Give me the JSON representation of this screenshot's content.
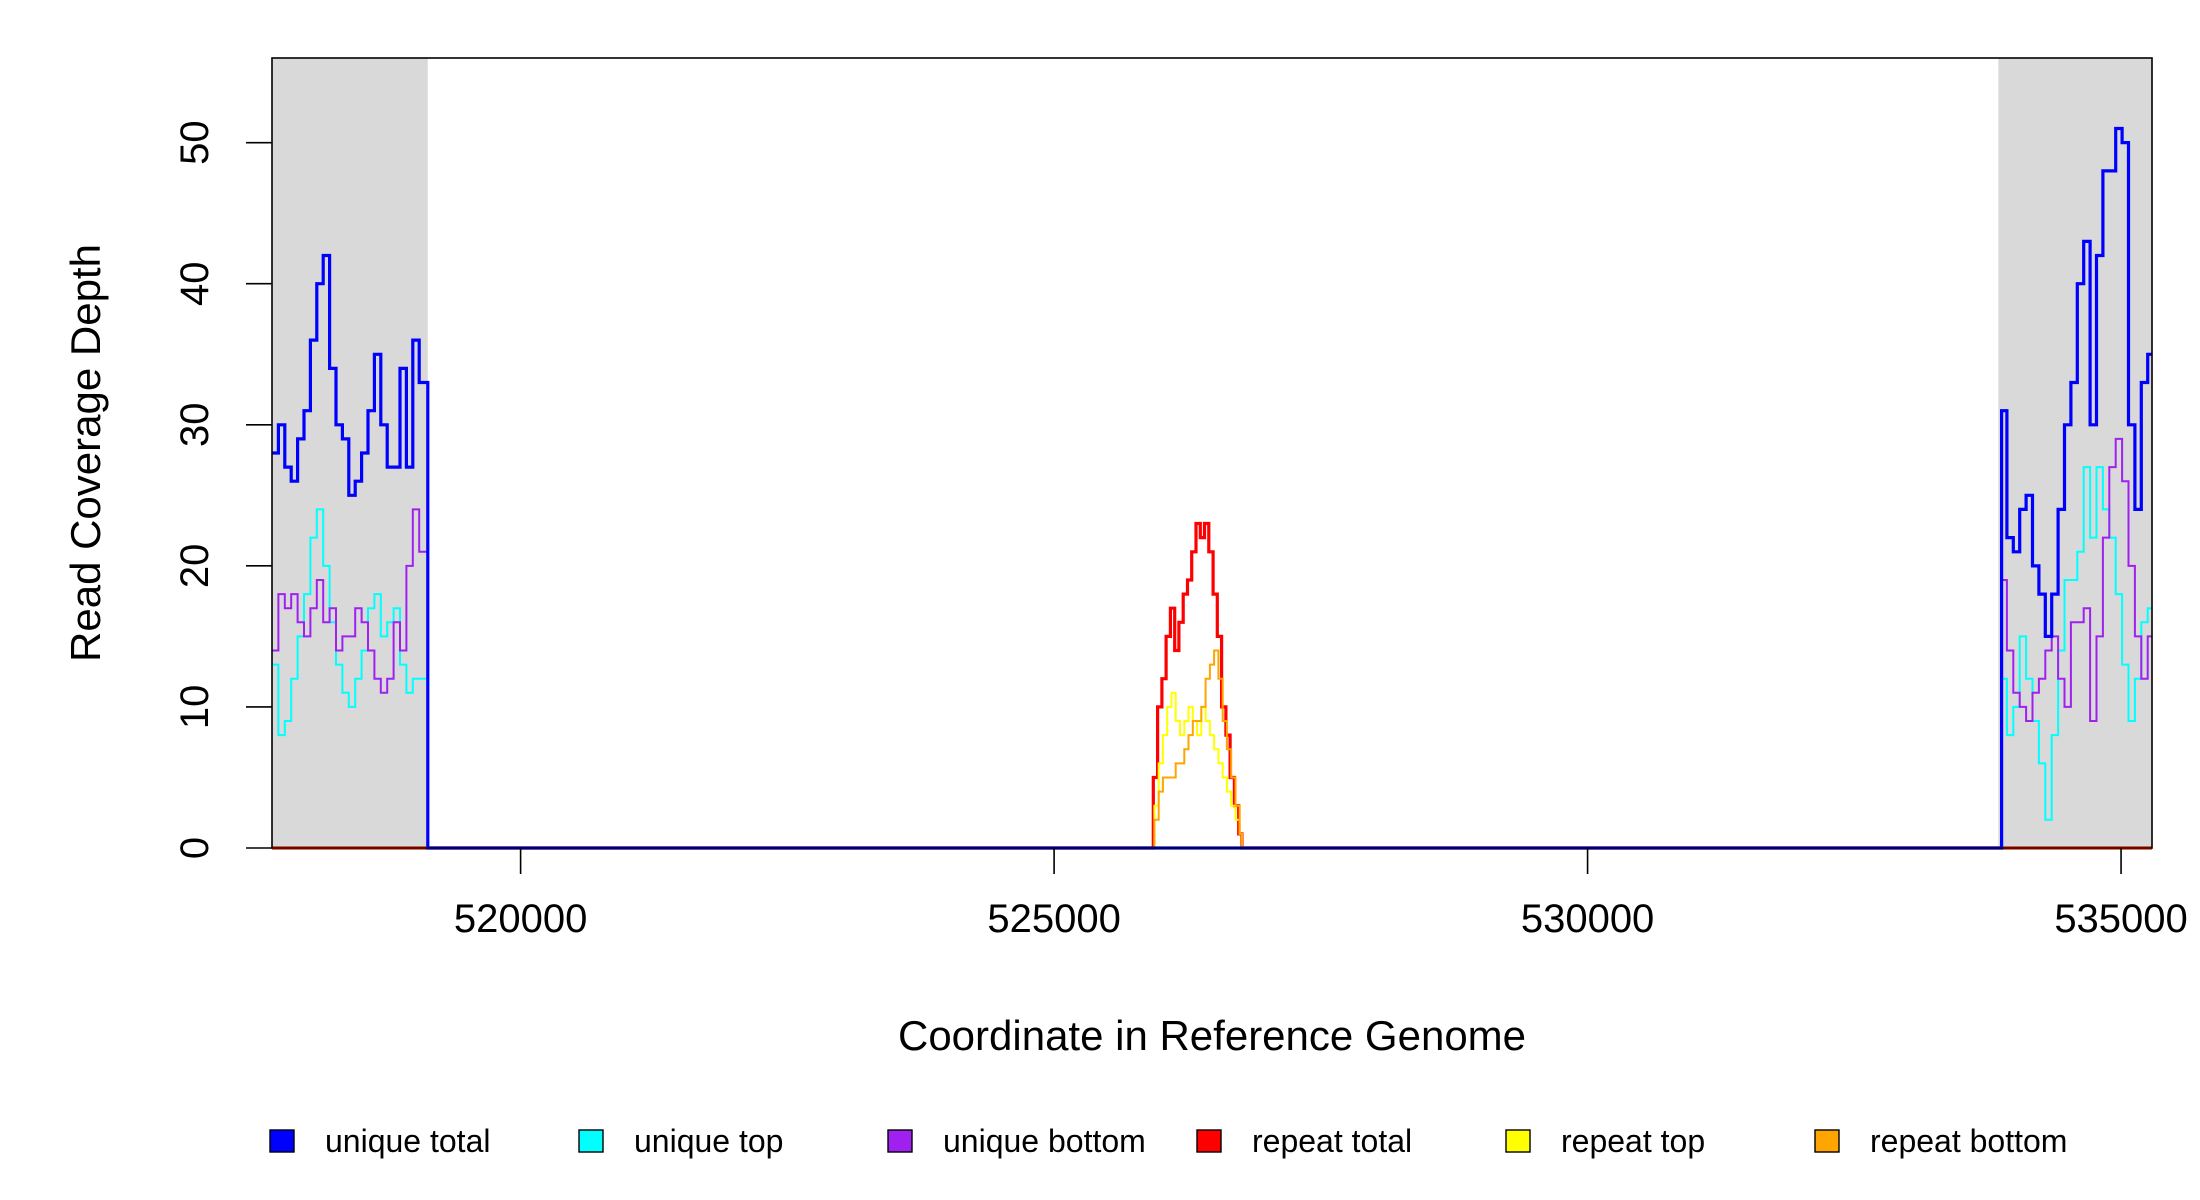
{
  "chart_data": {
    "type": "line",
    "title": "",
    "xlabel": "Coordinate in Reference Genome",
    "ylabel": "Read Coverage Depth",
    "xlim": [
      517670,
      535290
    ],
    "ylim": [
      0,
      56
    ],
    "x_ticks": [
      520000,
      525000,
      530000,
      535000
    ],
    "x_tick_labels": [
      "520000",
      "525000",
      "530000",
      "535000"
    ],
    "y_ticks": [
      0,
      10,
      20,
      30,
      40,
      50
    ],
    "y_tick_labels": [
      "0",
      "10",
      "20",
      "30",
      "40",
      "50"
    ],
    "grid": false,
    "shaded_regions": [
      {
        "x0": 517670,
        "x1": 519130,
        "color": "#d9d9d9"
      },
      {
        "x0": 533850,
        "x1": 535290,
        "color": "#d9d9d9"
      }
    ],
    "legend": {
      "placement": "bottom",
      "entries": [
        {
          "label": "unique total",
          "color": "#0000ff"
        },
        {
          "label": "unique top",
          "color": "#00ffff"
        },
        {
          "label": "unique bottom",
          "color": "#a020f0"
        },
        {
          "label": "repeat total",
          "color": "#ff0000"
        },
        {
          "label": "repeat top",
          "color": "#ffff00"
        },
        {
          "label": "repeat bottom",
          "color": "#ffa500"
        }
      ]
    },
    "series": [
      {
        "name": "unique total",
        "color": "#0000ff",
        "width": 3.2,
        "x": [
          517670,
          517730,
          517790,
          517850,
          517910,
          517970,
          518030,
          518090,
          518150,
          518210,
          518270,
          518330,
          518390,
          518450,
          518510,
          518570,
          518630,
          518690,
          518750,
          518810,
          518870,
          518930,
          518990,
          519050,
          519100,
          519130,
          533850,
          533880,
          533930,
          533990,
          534050,
          534110,
          534170,
          534230,
          534290,
          534350,
          534410,
          534470,
          534530,
          534590,
          534650,
          534710,
          534770,
          534830,
          534890,
          534950,
          535010,
          535070,
          535130,
          535190,
          535250,
          535290
        ],
        "y": [
          28,
          30,
          27,
          26,
          29,
          31,
          36,
          40,
          42,
          34,
          30,
          29,
          25,
          26,
          28,
          31,
          35,
          30,
          27,
          27,
          34,
          27,
          36,
          33,
          33,
          0,
          0,
          31,
          22,
          21,
          24,
          25,
          20,
          18,
          15,
          18,
          24,
          30,
          33,
          40,
          43,
          30,
          42,
          48,
          48,
          51,
          50,
          30,
          24,
          33,
          35,
          35
        ]
      },
      {
        "name": "unique top",
        "color": "#00ffff",
        "width": 2,
        "x": [
          517670,
          517730,
          517790,
          517850,
          517910,
          517970,
          518030,
          518090,
          518150,
          518210,
          518270,
          518330,
          518390,
          518450,
          518510,
          518570,
          518630,
          518690,
          518750,
          518810,
          518870,
          518930,
          518990,
          519050,
          519100,
          519130,
          533850,
          533880,
          533930,
          533990,
          534050,
          534110,
          534170,
          534230,
          534290,
          534350,
          534410,
          534470,
          534530,
          534590,
          534650,
          534710,
          534770,
          534830,
          534890,
          534950,
          535010,
          535070,
          535130,
          535190,
          535250,
          535290
        ],
        "y": [
          13,
          8,
          9,
          12,
          15,
          18,
          22,
          24,
          20,
          16,
          13,
          11,
          10,
          12,
          14,
          17,
          18,
          15,
          16,
          17,
          13,
          11,
          12,
          12,
          12,
          0,
          0,
          12,
          8,
          10,
          15,
          12,
          9,
          6,
          2,
          8,
          14,
          19,
          19,
          21,
          27,
          22,
          27,
          24,
          22,
          18,
          13,
          9,
          12,
          16,
          17,
          17
        ]
      },
      {
        "name": "unique bottom",
        "color": "#a020f0",
        "width": 2,
        "x": [
          517670,
          517730,
          517790,
          517850,
          517910,
          517970,
          518030,
          518090,
          518150,
          518210,
          518270,
          518330,
          518390,
          518450,
          518510,
          518570,
          518630,
          518690,
          518750,
          518810,
          518870,
          518930,
          518990,
          519050,
          519100,
          519130,
          533850,
          533880,
          533930,
          533990,
          534050,
          534110,
          534170,
          534230,
          534290,
          534350,
          534410,
          534470,
          534530,
          534590,
          534650,
          534710,
          534770,
          534830,
          534890,
          534950,
          535010,
          535070,
          535130,
          535190,
          535250,
          535290
        ],
        "y": [
          14,
          18,
          17,
          18,
          16,
          15,
          17,
          19,
          16,
          17,
          14,
          15,
          15,
          17,
          16,
          14,
          12,
          11,
          12,
          16,
          14,
          20,
          24,
          21,
          21,
          0,
          0,
          19,
          14,
          11,
          10,
          9,
          11,
          12,
          14,
          15,
          12,
          10,
          16,
          16,
          17,
          9,
          15,
          22,
          27,
          29,
          26,
          20,
          15,
          12,
          15,
          15
        ]
      },
      {
        "name": "repeat total",
        "color": "#ff0000",
        "width": 3.2,
        "x": [
          517670,
          525900,
          525930,
          525970,
          526010,
          526050,
          526090,
          526130,
          526170,
          526210,
          526250,
          526290,
          526330,
          526370,
          526410,
          526450,
          526490,
          526530,
          526570,
          526610,
          526650,
          526690,
          526730,
          526760,
          535290
        ],
        "y": [
          0,
          0,
          5,
          10,
          12,
          15,
          17,
          14,
          16,
          18,
          19,
          21,
          23,
          22,
          23,
          21,
          18,
          15,
          10,
          8,
          5,
          3,
          1,
          0,
          0
        ]
      },
      {
        "name": "repeat top",
        "color": "#ffff00",
        "width": 2,
        "x": [
          517670,
          525900,
          525940,
          525980,
          526020,
          526060,
          526100,
          526140,
          526180,
          526220,
          526260,
          526300,
          526340,
          526380,
          526420,
          526460,
          526500,
          526540,
          526580,
          526620,
          526660,
          526700,
          526740,
          526760,
          535290
        ],
        "y": [
          0,
          0,
          3,
          6,
          8,
          10,
          11,
          9,
          8,
          9,
          10,
          9,
          8,
          10,
          9,
          8,
          7,
          6,
          5,
          4,
          3,
          2,
          1,
          0,
          0
        ]
      },
      {
        "name": "repeat bottom",
        "color": "#ffa500",
        "width": 2,
        "x": [
          517670,
          525900,
          525940,
          525980,
          526020,
          526060,
          526100,
          526140,
          526180,
          526220,
          526260,
          526300,
          526340,
          526380,
          526420,
          526460,
          526500,
          526540,
          526580,
          526620,
          526660,
          526700,
          526740,
          526760,
          535290
        ],
        "y": [
          0,
          0,
          2,
          4,
          5,
          5,
          5,
          6,
          6,
          7,
          8,
          9,
          9,
          10,
          12,
          13,
          14,
          12,
          9,
          7,
          5,
          3,
          1,
          0,
          0
        ]
      }
    ]
  }
}
